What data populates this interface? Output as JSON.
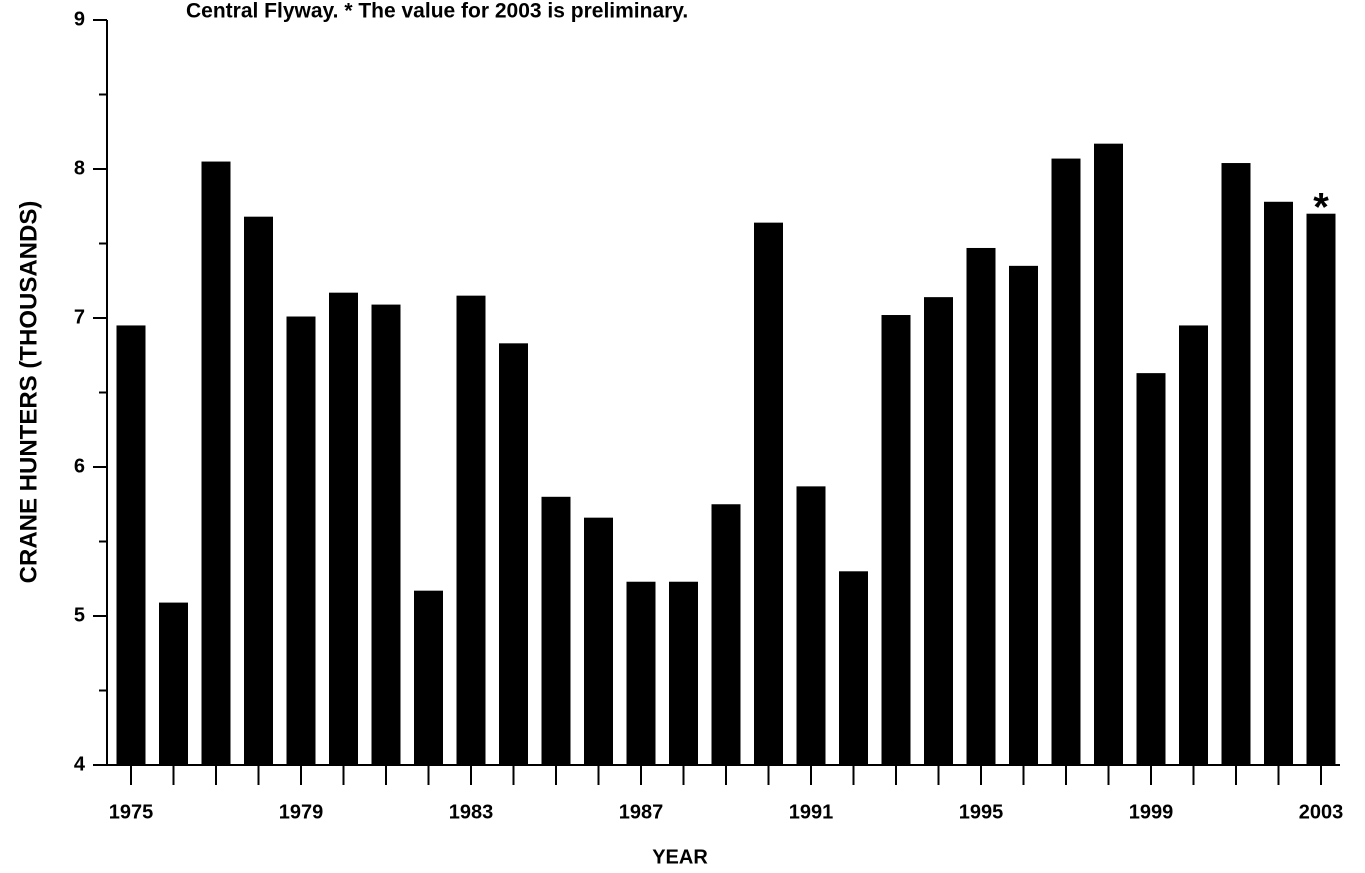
{
  "chart_data": {
    "type": "bar",
    "title": "Central Flyway. * The value for 2003 is preliminary.",
    "x_label": "YEAR",
    "y_label": "CRANE HUNTERS (THOUSANDS)",
    "categories": [
      "1975",
      null,
      null,
      null,
      "1979",
      null,
      null,
      null,
      "1983",
      null,
      null,
      null,
      "1987",
      null,
      null,
      null,
      "1991",
      null,
      null,
      null,
      "1995",
      null,
      null,
      null,
      "1999",
      null,
      null,
      null,
      "2003"
    ],
    "values": [
      6.95,
      5.09,
      8.05,
      7.68,
      7.01,
      7.17,
      7.09,
      5.17,
      7.15,
      6.83,
      5.8,
      5.66,
      5.23,
      5.23,
      5.75,
      7.64,
      5.87,
      5.3,
      7.02,
      7.14,
      7.47,
      7.35,
      8.07,
      8.17,
      6.63,
      6.95,
      8.04,
      7.78,
      7.7
    ],
    "color": "#000000",
    "annotation": "*",
    "ylim": [
      4,
      9
    ],
    "yticks": [
      4,
      5,
      6,
      7,
      8,
      9
    ],
    "minor_yticks": [
      4.5,
      5.5,
      6.5,
      7.5,
      8.5
    ]
  }
}
